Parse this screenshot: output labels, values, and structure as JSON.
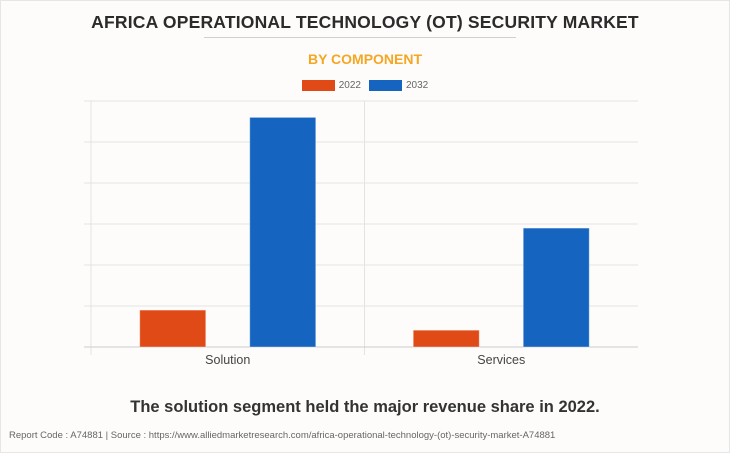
{
  "header": {
    "title": "AFRICA OPERATIONAL TECHNOLOGY (OT) SECURITY MARKET",
    "subtitle": "BY COMPONENT"
  },
  "legend": [
    {
      "label": "2022",
      "color": "#e04a17"
    },
    {
      "label": "2032",
      "color": "#1565c0"
    }
  ],
  "chart_data": {
    "type": "bar",
    "title": "AFRICA OPERATIONAL TECHNOLOGY (OT) SECURITY MARKET",
    "subtitle": "BY COMPONENT",
    "categories": [
      "Solution",
      "Services"
    ],
    "series": [
      {
        "name": "2022",
        "color": "#e04a17",
        "values": [
          0.9,
          0.41
        ]
      },
      {
        "name": "2032",
        "color": "#1565c0",
        "values": [
          5.6,
          2.9
        ]
      }
    ],
    "xlabel": "",
    "ylabel": "",
    "ylim": [
      0,
      6
    ],
    "y_ticks_labeled": false,
    "gridlines": 6,
    "grid": true,
    "legend_position": "top-center",
    "value_units": "relative (gridline units; axis unlabeled)"
  },
  "footer": {
    "caption": "The solution segment held the major revenue share in 2022.",
    "source": "Report Code : A74881  |  Source : https://www.alliedmarketresearch.com/africa-operational-technology-(ot)-security-market-A74881"
  }
}
